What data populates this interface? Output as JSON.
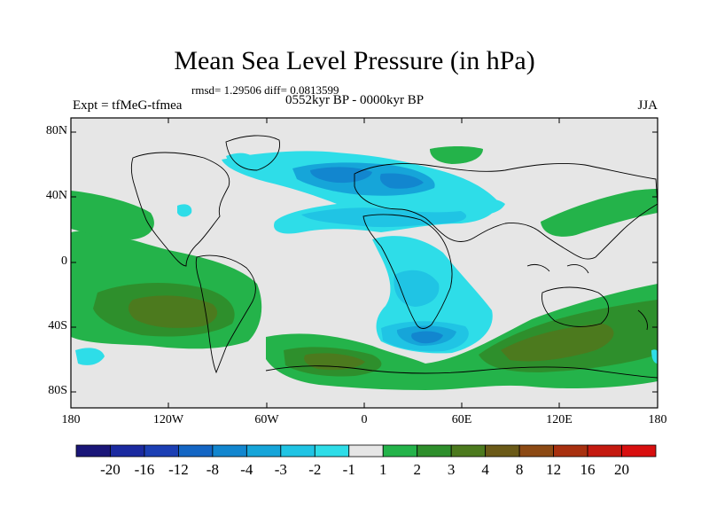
{
  "header": {
    "title": "Mean Sea Level Pressure (in hPa)",
    "stats": "rmsd= 1.29506 diff= 0.0813599",
    "expt": "Expt = tfMeG-tfmea",
    "period": "0552kyr BP - 0000kyr BP",
    "season": "JJA"
  },
  "axes": {
    "lat_labels": [
      "80N",
      "40N",
      "0",
      "40S",
      "80S"
    ],
    "lon_labels": [
      "180",
      "120W",
      "60W",
      "0",
      "60E",
      "120E",
      "180"
    ]
  },
  "colorbar": {
    "labels": [
      "-20",
      "-16",
      "-12",
      "-8",
      "-4",
      "-3",
      "-2",
      "-1",
      "1",
      "2",
      "3",
      "4",
      "8",
      "12",
      "16",
      "20"
    ],
    "colors": [
      "#1a1678",
      "#1b2aa0",
      "#1c3fb4",
      "#1466c4",
      "#1286cf",
      "#16a5d9",
      "#20c4e4",
      "#2edde8",
      "#e6e6e6",
      "#24b34a",
      "#2e8f2c",
      "#4c7a1e",
      "#6b5a18",
      "#8c4a14",
      "#a8300f",
      "#c41a10",
      "#d80f0f"
    ]
  },
  "colors": {
    "ocean": "#e6e6e6",
    "coast": "#000000",
    "neg1": "#2edde8",
    "neg2": "#20c4e4",
    "neg3": "#16a5d9",
    "neg4": "#1286cf",
    "pos1": "#24b34a",
    "pos2": "#2e8f2c",
    "pos3": "#4c7a1e",
    "pos4": "#6b5a18"
  }
}
